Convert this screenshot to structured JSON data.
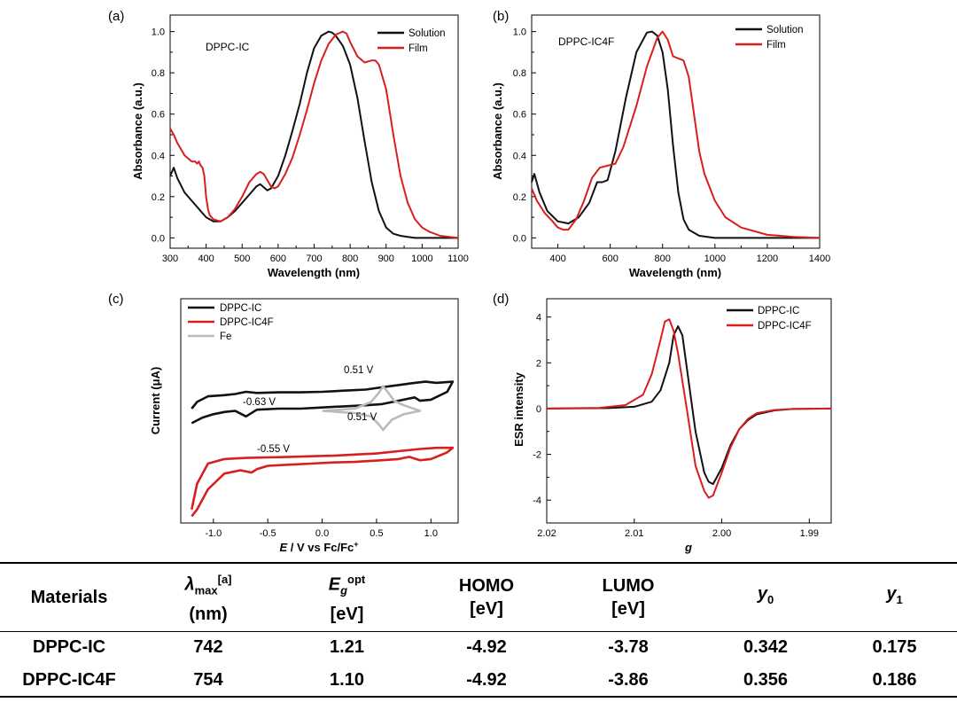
{
  "panels": {
    "a": {
      "label": "(a)",
      "inset": "DPPC-IC"
    },
    "b": {
      "label": "(b)",
      "inset": "DPPC-IC4F"
    },
    "c": {
      "label": "(c)"
    },
    "d": {
      "label": "(d)"
    }
  },
  "colors": {
    "solution": "#111111",
    "film": "#d81e1e",
    "dppc_ic": "#111111",
    "dppc_ic4f": "#d81e1e",
    "fe": "#bbbbbb"
  },
  "chart_data": [
    {
      "id": "a",
      "type": "line",
      "title": "DPPC-IC",
      "xlabel": "Wavelength (nm)",
      "ylabel": "Absorbance (a.u.)",
      "xlim": [
        300,
        1100
      ],
      "ylim": [
        -0.05,
        1.08
      ],
      "xticks": [
        300,
        400,
        500,
        600,
        700,
        800,
        900,
        1000,
        1100
      ],
      "yticks": [
        0.0,
        0.2,
        0.4,
        0.6,
        0.8,
        1.0
      ],
      "legend": "top-right",
      "series": [
        {
          "name": "Solution",
          "color": "#111111",
          "x": [
            300,
            310,
            320,
            340,
            360,
            380,
            400,
            420,
            440,
            460,
            480,
            500,
            520,
            540,
            550,
            560,
            570,
            580,
            600,
            620,
            640,
            660,
            680,
            700,
            720,
            740,
            750,
            760,
            780,
            800,
            820,
            840,
            860,
            880,
            900,
            920,
            940,
            960,
            980,
            1000,
            1050,
            1100
          ],
          "y": [
            0.3,
            0.34,
            0.29,
            0.22,
            0.18,
            0.14,
            0.1,
            0.08,
            0.08,
            0.1,
            0.13,
            0.17,
            0.21,
            0.25,
            0.26,
            0.245,
            0.23,
            0.24,
            0.3,
            0.4,
            0.52,
            0.65,
            0.8,
            0.92,
            0.98,
            1.0,
            0.995,
            0.98,
            0.93,
            0.84,
            0.68,
            0.47,
            0.27,
            0.13,
            0.05,
            0.02,
            0.01,
            0.005,
            0.0,
            0.0,
            0.0,
            0.0
          ]
        },
        {
          "name": "Film",
          "color": "#d81e1e",
          "x": [
            300,
            310,
            320,
            340,
            360,
            370,
            375,
            380,
            385,
            390,
            395,
            400,
            405,
            410,
            420,
            440,
            460,
            480,
            500,
            520,
            540,
            550,
            560,
            570,
            580,
            590,
            600,
            620,
            640,
            660,
            680,
            700,
            720,
            740,
            760,
            780,
            790,
            800,
            820,
            840,
            860,
            870,
            880,
            900,
            920,
            940,
            960,
            980,
            1000,
            1020,
            1050,
            1100
          ],
          "y": [
            0.53,
            0.5,
            0.46,
            0.4,
            0.37,
            0.37,
            0.36,
            0.37,
            0.35,
            0.34,
            0.3,
            0.2,
            0.14,
            0.11,
            0.09,
            0.08,
            0.1,
            0.14,
            0.2,
            0.27,
            0.31,
            0.32,
            0.31,
            0.28,
            0.25,
            0.24,
            0.25,
            0.31,
            0.39,
            0.5,
            0.62,
            0.75,
            0.86,
            0.94,
            0.985,
            1.0,
            0.99,
            0.95,
            0.88,
            0.85,
            0.86,
            0.86,
            0.84,
            0.72,
            0.5,
            0.3,
            0.17,
            0.09,
            0.05,
            0.03,
            0.01,
            0.0
          ]
        }
      ]
    },
    {
      "id": "b",
      "type": "line",
      "title": "DPPC-IC4F",
      "xlabel": "Wavelength (nm)",
      "ylabel": "Absorbance (a.u.)",
      "xlim": [
        300,
        1400
      ],
      "ylim": [
        -0.05,
        1.08
      ],
      "xticks": [
        400,
        600,
        800,
        1000,
        1200,
        1400
      ],
      "yticks": [
        0.0,
        0.2,
        0.4,
        0.6,
        0.8,
        1.0
      ],
      "legend": "top-right",
      "series": [
        {
          "name": "Solution",
          "color": "#111111",
          "x": [
            300,
            310,
            330,
            360,
            400,
            440,
            480,
            520,
            550,
            570,
            590,
            620,
            660,
            700,
            740,
            760,
            780,
            800,
            820,
            840,
            860,
            880,
            900,
            940,
            1000,
            1100,
            1200,
            1300,
            1400
          ],
          "y": [
            0.27,
            0.31,
            0.22,
            0.13,
            0.08,
            0.07,
            0.1,
            0.17,
            0.27,
            0.27,
            0.28,
            0.42,
            0.68,
            0.9,
            0.995,
            1.0,
            0.98,
            0.9,
            0.72,
            0.45,
            0.22,
            0.09,
            0.04,
            0.01,
            0.0,
            0.0,
            0.0,
            0.0,
            0.0
          ]
        },
        {
          "name": "Film",
          "color": "#d81e1e",
          "x": [
            300,
            320,
            350,
            380,
            400,
            420,
            440,
            470,
            500,
            530,
            560,
            590,
            620,
            650,
            700,
            740,
            780,
            800,
            820,
            840,
            860,
            880,
            900,
            920,
            940,
            960,
            1000,
            1040,
            1100,
            1200,
            1300,
            1400
          ],
          "y": [
            0.24,
            0.18,
            0.12,
            0.08,
            0.05,
            0.04,
            0.04,
            0.09,
            0.18,
            0.29,
            0.34,
            0.35,
            0.36,
            0.44,
            0.64,
            0.83,
            0.97,
            1.0,
            0.96,
            0.88,
            0.87,
            0.86,
            0.78,
            0.6,
            0.42,
            0.31,
            0.18,
            0.1,
            0.05,
            0.015,
            0.005,
            0.0
          ]
        }
      ]
    },
    {
      "id": "c",
      "type": "line",
      "title": "",
      "xlabel": "E / V vs Fc/Fc+",
      "ylabel": "Current (μA)",
      "xlim": [
        -1.3,
        1.25
      ],
      "ylim": [
        -1.0,
        1.0
      ],
      "xticks": [
        -1.0,
        -0.5,
        0.0,
        0.5,
        1.0
      ],
      "xtick_labels": [
        "-1.0",
        "-0.5",
        "0.0",
        "0.5",
        "1.0"
      ],
      "legend": "top-left",
      "annotations": [
        "0.51 V",
        "-0.63 V",
        "0.51 V",
        "-0.55 V"
      ],
      "series": [
        {
          "name": "DPPC-IC",
          "color": "#111111",
          "x": [
            -1.2,
            -1.15,
            -1.05,
            -0.9,
            -0.8,
            -0.7,
            -0.6,
            -0.4,
            -0.2,
            0.0,
            0.2,
            0.4,
            0.55,
            0.7,
            0.85,
            0.95,
            1.05,
            1.2,
            1.15,
            1.0,
            0.9,
            0.85,
            0.7,
            0.55,
            0.4,
            0.2,
            0.0,
            -0.2,
            -0.4,
            -0.6,
            -0.7,
            -0.8,
            -0.9,
            -1.0,
            -1.1,
            -1.2
          ],
          "y": [
            0.02,
            0.08,
            0.13,
            0.14,
            0.15,
            0.17,
            0.16,
            0.165,
            0.165,
            0.17,
            0.18,
            0.19,
            0.21,
            0.23,
            0.25,
            0.26,
            0.25,
            0.26,
            0.17,
            0.1,
            0.09,
            0.12,
            0.09,
            0.06,
            0.05,
            0.04,
            0.03,
            0.02,
            0.02,
            0.01,
            -0.05,
            0.0,
            -0.01,
            -0.03,
            -0.06,
            -0.11
          ]
        },
        {
          "name": "DPPC-IC4F",
          "color": "#d81e1e",
          "x": [
            -1.2,
            -1.15,
            -1.05,
            -0.9,
            -0.7,
            -0.5,
            -0.3,
            -0.1,
            0.1,
            0.3,
            0.5,
            0.7,
            0.9,
            1.05,
            1.2,
            1.15,
            1.0,
            0.9,
            0.8,
            0.7,
            0.55,
            0.3,
            0.1,
            -0.1,
            -0.3,
            -0.5,
            -0.6,
            -0.65,
            -0.75,
            -0.9,
            -1.05,
            -1.15,
            -1.2
          ],
          "y": [
            -0.88,
            -0.65,
            -0.47,
            -0.43,
            -0.42,
            -0.415,
            -0.41,
            -0.405,
            -0.4,
            -0.39,
            -0.38,
            -0.36,
            -0.34,
            -0.33,
            -0.33,
            -0.37,
            -0.43,
            -0.44,
            -0.41,
            -0.43,
            -0.44,
            -0.455,
            -0.46,
            -0.47,
            -0.48,
            -0.49,
            -0.52,
            -0.55,
            -0.53,
            -0.56,
            -0.7,
            -0.88,
            -0.94
          ]
        },
        {
          "name": "Fe",
          "color": "#bbbbbb",
          "x": [
            0.0,
            0.3,
            0.45,
            0.52,
            0.56,
            0.61,
            0.66,
            0.75,
            0.9,
            0.75,
            0.64,
            0.56,
            0.52,
            0.45,
            0.3,
            0.0
          ],
          "y": [
            0.0,
            0.02,
            0.08,
            0.16,
            0.22,
            0.16,
            0.09,
            0.05,
            0.0,
            -0.03,
            -0.08,
            -0.17,
            -0.12,
            -0.05,
            -0.02,
            0.0
          ]
        }
      ]
    },
    {
      "id": "d",
      "type": "line",
      "title": "",
      "xlabel": "g",
      "ylabel": "ESR intensity",
      "xlim": [
        2.02,
        1.9875
      ],
      "ylim": [
        -5.0,
        4.8
      ],
      "xticks": [
        2.02,
        2.01,
        2.0,
        1.99
      ],
      "xtick_labels": [
        "2.02",
        "2.01",
        "2.00",
        "1.99"
      ],
      "yticks": [
        -4,
        -2,
        0,
        2,
        4
      ],
      "legend": "top-right",
      "series": [
        {
          "name": "DPPC-IC",
          "color": "#111111",
          "x": [
            2.02,
            2.013,
            2.01,
            2.008,
            2.007,
            2.006,
            2.0055,
            2.005,
            2.0045,
            2.004,
            2.003,
            2.002,
            2.0015,
            2.001,
            2.0,
            1.999,
            1.998,
            1.997,
            1.996,
            1.994,
            1.992,
            1.9875
          ],
          "y": [
            0.0,
            0.02,
            0.08,
            0.3,
            0.8,
            2.0,
            3.2,
            3.6,
            3.2,
            1.8,
            -1.0,
            -2.8,
            -3.2,
            -3.3,
            -2.6,
            -1.6,
            -0.9,
            -0.5,
            -0.25,
            -0.08,
            -0.02,
            0.0
          ]
        },
        {
          "name": "DPPC-IC4F",
          "color": "#d81e1e",
          "x": [
            2.02,
            2.014,
            2.011,
            2.009,
            2.008,
            2.007,
            2.0065,
            2.006,
            2.0055,
            2.005,
            2.004,
            2.003,
            2.002,
            2.0015,
            2.001,
            2.0,
            1.999,
            1.998,
            1.997,
            1.996,
            1.994,
            1.992,
            1.9875
          ],
          "y": [
            0.0,
            0.03,
            0.15,
            0.6,
            1.5,
            3.0,
            3.8,
            3.9,
            3.4,
            2.4,
            0.0,
            -2.5,
            -3.6,
            -3.9,
            -3.8,
            -2.8,
            -1.7,
            -0.9,
            -0.45,
            -0.2,
            -0.06,
            -0.02,
            0.0
          ]
        }
      ]
    }
  ],
  "table": {
    "headers": [
      {
        "main": "Materials"
      },
      {
        "main": "λ",
        "sub": "max",
        "sup": "[a]",
        "unit": "(nm)"
      },
      {
        "main": "E",
        "sub": "g",
        "sup": "opt",
        "unit": "[eV]"
      },
      {
        "main": "HOMO",
        "unit": "[eV]"
      },
      {
        "main": "LUMO",
        "unit": "[eV]"
      },
      {
        "main": "y",
        "sub": "0"
      },
      {
        "main": "y",
        "sub": "1"
      }
    ],
    "rows": [
      [
        "DPPC-IC",
        "742",
        "1.21",
        "-4.92",
        "-3.78",
        "0.342",
        "0.175"
      ],
      [
        "DPPC-IC4F",
        "754",
        "1.10",
        "-4.92",
        "-3.86",
        "0.356",
        "0.186"
      ]
    ]
  }
}
